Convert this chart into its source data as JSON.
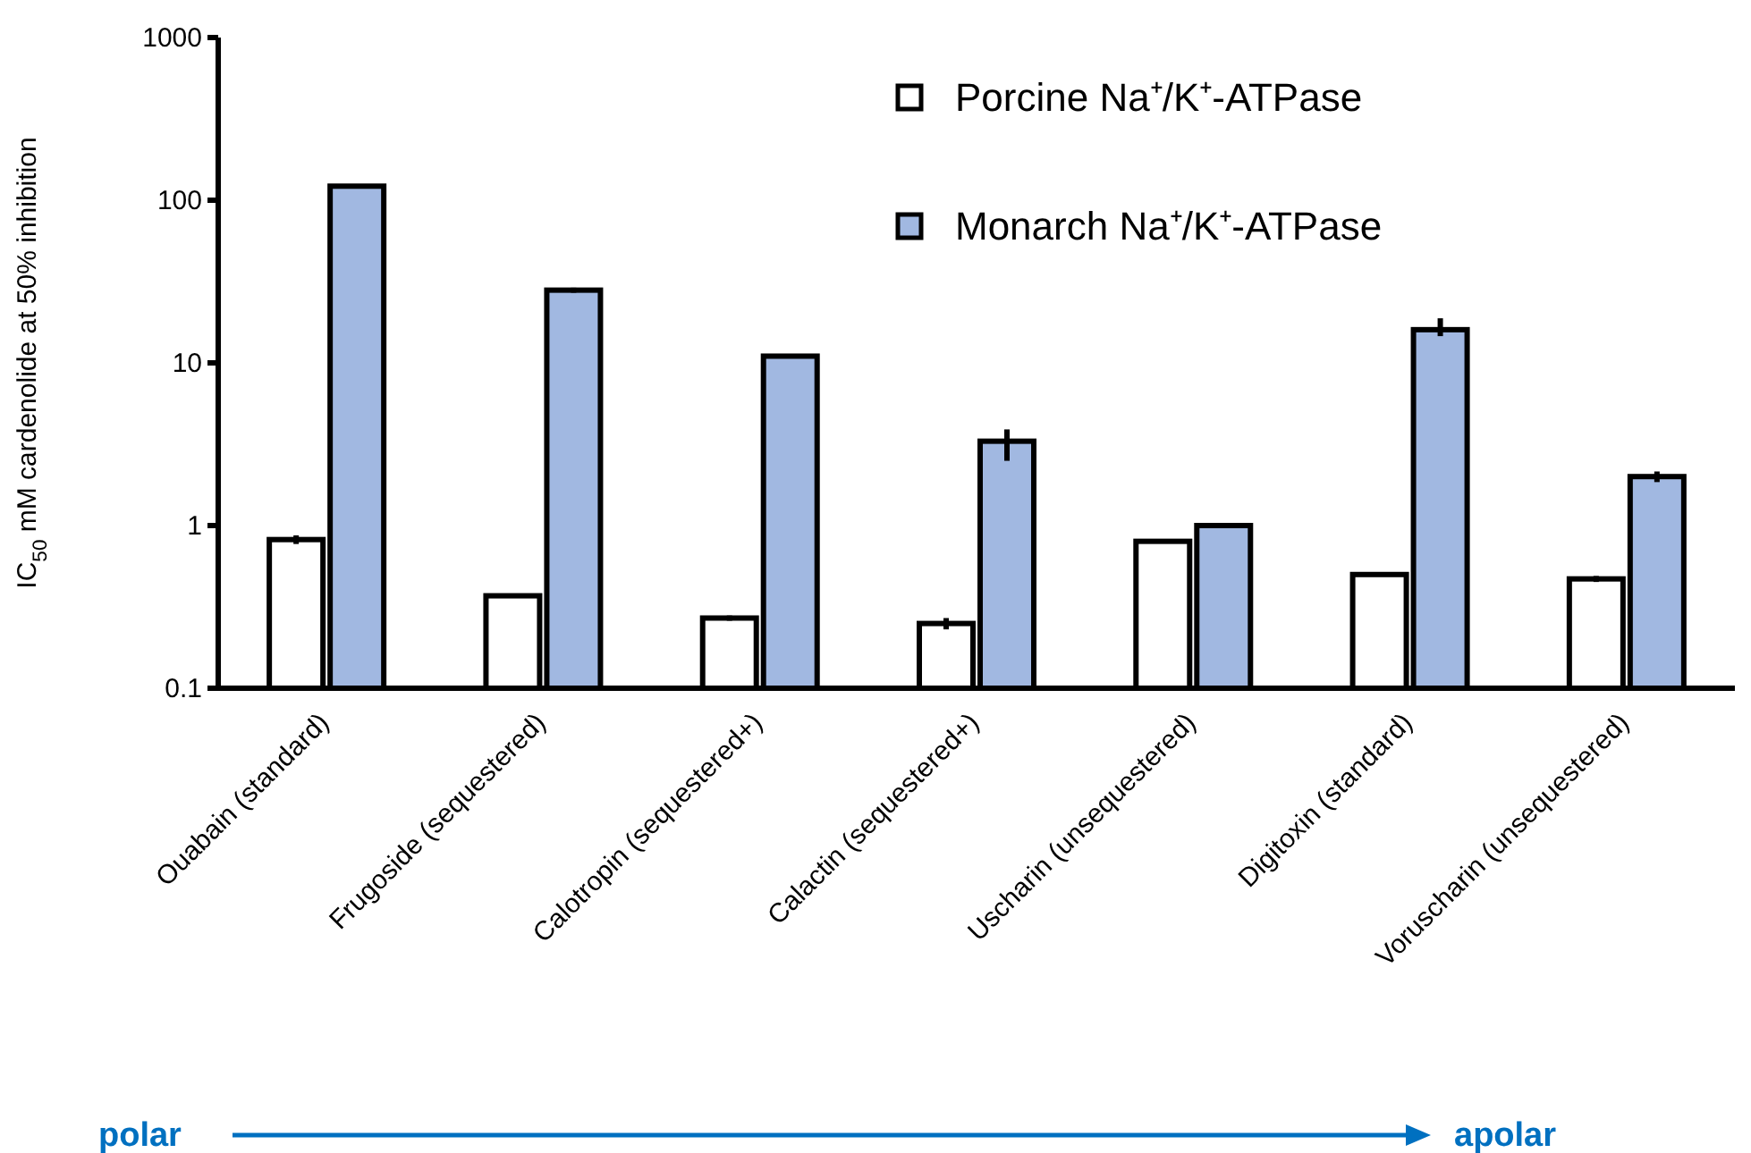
{
  "chart_data": {
    "type": "bar",
    "ylabel": "IC$_{50}$ mM cardenolide at 50% inhibition",
    "categories": [
      "Ouabain (standard)",
      "Frugoside (sequestered)",
      "Calotropin (sequestered+)",
      "Calactin (sequestered+)",
      "Uscharin (unsequestered)",
      "Digitoxin (standard)",
      "Voruscharin (unsequestered)"
    ],
    "series": [
      {
        "name": "Porcine Na⁺/K⁺-ATPase",
        "color": "#ffffff",
        "values": [
          0.82,
          0.37,
          0.27,
          0.25,
          0.8,
          0.5,
          0.47
        ],
        "errors": [
          0.05,
          null,
          0.01,
          0.02,
          0.02,
          null,
          0.02
        ]
      },
      {
        "name": "Monarch Na⁺/K⁺-ATPase",
        "color": "#4472c4",
        "values": [
          122,
          28,
          11,
          3.3,
          1.0,
          16,
          2.0
        ],
        "errors": [
          null,
          1,
          null,
          [
            2.5,
            3.9
          ],
          null,
          [
            14.6,
            18.8
          ],
          0.15
        ]
      }
    ],
    "log": true,
    "ylim": [
      0.1,
      1000
    ],
    "yticks": [
      0.1,
      1,
      10,
      100,
      1000
    ],
    "legend": "top right",
    "grid": false,
    "annotations": [
      "polar",
      "apolar"
    ]
  }
}
